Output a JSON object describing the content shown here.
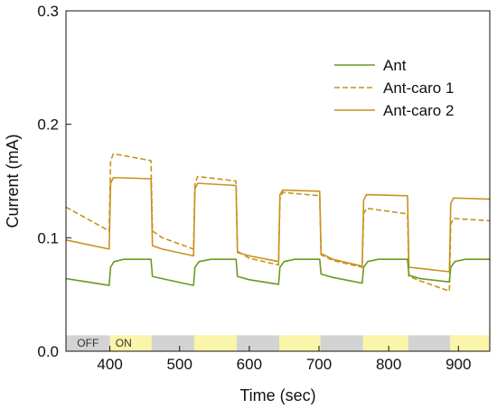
{
  "chart_data": {
    "type": "line",
    "title": "",
    "xlabel": "Time (sec)",
    "ylabel": "Current (mA)",
    "xlim": [
      337,
      945
    ],
    "ylim": [
      0.0,
      0.3
    ],
    "xticks": [
      400,
      500,
      600,
      700,
      800,
      900
    ],
    "yticks": [
      0.0,
      0.1,
      0.2,
      0.3
    ],
    "ytick_labels": [
      "0.0",
      "0.1",
      "0.2",
      "0.3"
    ],
    "grid": false,
    "legend_position": "top-right",
    "colors": {
      "ant": "#6a9a1f",
      "caro": "#c8921e",
      "on_band": "#faf5a8",
      "off_band": "#d3d3d3",
      "axis": "#111111"
    },
    "light_bar": {
      "labels": {
        "off": "OFF",
        "on": "ON"
      },
      "y_range": [
        0.0,
        0.014
      ],
      "on_intervals": [
        [
          400,
          460
        ],
        [
          521,
          582
        ],
        [
          643,
          702
        ],
        [
          763,
          828
        ],
        [
          888,
          945
        ]
      ]
    },
    "series": [
      {
        "name": "Ant",
        "style": "solid",
        "points": [
          [
            337,
            0.064
          ],
          [
            399,
            0.058
          ],
          [
            401,
            0.074
          ],
          [
            406,
            0.079
          ],
          [
            420,
            0.081
          ],
          [
            459,
            0.081
          ],
          [
            461,
            0.066
          ],
          [
            475,
            0.064
          ],
          [
            520,
            0.058
          ],
          [
            522,
            0.074
          ],
          [
            528,
            0.079
          ],
          [
            545,
            0.081
          ],
          [
            581,
            0.081
          ],
          [
            583,
            0.066
          ],
          [
            600,
            0.063
          ],
          [
            642,
            0.059
          ],
          [
            644,
            0.074
          ],
          [
            650,
            0.079
          ],
          [
            665,
            0.081
          ],
          [
            701,
            0.081
          ],
          [
            703,
            0.068
          ],
          [
            720,
            0.065
          ],
          [
            762,
            0.06
          ],
          [
            764,
            0.074
          ],
          [
            770,
            0.079
          ],
          [
            785,
            0.081
          ],
          [
            827,
            0.081
          ],
          [
            829,
            0.067
          ],
          [
            845,
            0.064
          ],
          [
            887,
            0.061
          ],
          [
            889,
            0.074
          ],
          [
            895,
            0.079
          ],
          [
            910,
            0.081
          ],
          [
            945,
            0.081
          ]
        ]
      },
      {
        "name": "Ant-caro 1",
        "style": "dashed",
        "points": [
          [
            337,
            0.127
          ],
          [
            399,
            0.106
          ],
          [
            401,
            0.168
          ],
          [
            405,
            0.174
          ],
          [
            459,
            0.168
          ],
          [
            461,
            0.106
          ],
          [
            475,
            0.1
          ],
          [
            520,
            0.09
          ],
          [
            522,
            0.148
          ],
          [
            526,
            0.154
          ],
          [
            581,
            0.15
          ],
          [
            583,
            0.088
          ],
          [
            600,
            0.082
          ],
          [
            642,
            0.076
          ],
          [
            644,
            0.134
          ],
          [
            648,
            0.14
          ],
          [
            701,
            0.137
          ],
          [
            703,
            0.085
          ],
          [
            720,
            0.08
          ],
          [
            762,
            0.074
          ],
          [
            764,
            0.121
          ],
          [
            768,
            0.126
          ],
          [
            827,
            0.121
          ],
          [
            829,
            0.066
          ],
          [
            845,
            0.062
          ],
          [
            887,
            0.053
          ],
          [
            889,
            0.112
          ],
          [
            893,
            0.117
          ],
          [
            945,
            0.115
          ]
        ]
      },
      {
        "name": "Ant-caro 2",
        "style": "solid",
        "points": [
          [
            337,
            0.098
          ],
          [
            399,
            0.09
          ],
          [
            401,
            0.148
          ],
          [
            405,
            0.153
          ],
          [
            459,
            0.152
          ],
          [
            461,
            0.093
          ],
          [
            475,
            0.09
          ],
          [
            520,
            0.084
          ],
          [
            522,
            0.143
          ],
          [
            526,
            0.148
          ],
          [
            581,
            0.146
          ],
          [
            583,
            0.087
          ],
          [
            600,
            0.084
          ],
          [
            642,
            0.079
          ],
          [
            644,
            0.138
          ],
          [
            648,
            0.142
          ],
          [
            701,
            0.141
          ],
          [
            703,
            0.086
          ],
          [
            720,
            0.081
          ],
          [
            762,
            0.075
          ],
          [
            764,
            0.133
          ],
          [
            768,
            0.138
          ],
          [
            827,
            0.137
          ],
          [
            829,
            0.074
          ],
          [
            845,
            0.073
          ],
          [
            887,
            0.07
          ],
          [
            889,
            0.13
          ],
          [
            893,
            0.135
          ],
          [
            945,
            0.134
          ]
        ]
      }
    ]
  }
}
